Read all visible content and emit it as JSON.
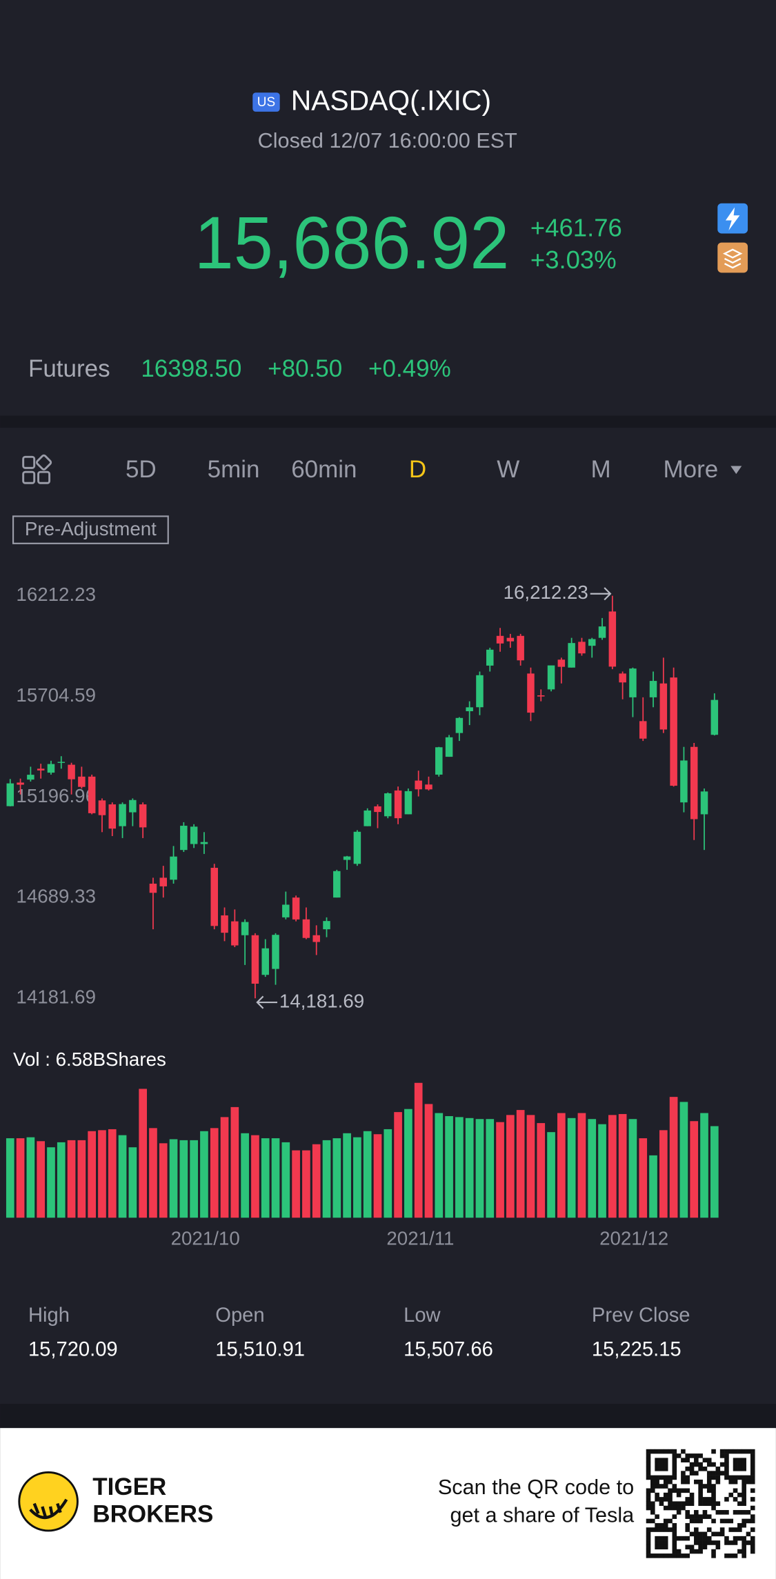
{
  "header": {
    "badge": "US",
    "title": "NASDAQ(.IXIC)",
    "status": "Closed 12/07 16:00:00 EST",
    "price": "15,686.92",
    "change": "+461.76",
    "change_pct": "+3.03%"
  },
  "futures": {
    "label": "Futures",
    "price": "16398.50",
    "change": "+80.50",
    "change_pct": "+0.49%"
  },
  "tabs": [
    {
      "label": "5D",
      "active": false
    },
    {
      "label": "5min",
      "active": false
    },
    {
      "label": "60min",
      "active": false
    },
    {
      "label": "D",
      "active": true
    },
    {
      "label": "W",
      "active": false
    },
    {
      "label": "M",
      "active": false
    },
    {
      "label": "More",
      "active": false
    }
  ],
  "chart_data": {
    "type": "candlestick",
    "adjustment": "Pre-Adjustment",
    "up_color": "#2cc47a",
    "down_color": "#f2394f",
    "ylim": [
      14181.69,
      16212.23
    ],
    "yticks": [
      16212.23,
      15704.59,
      15196.96,
      14689.33,
      14181.69
    ],
    "categories": [
      null,
      null,
      null,
      null,
      null,
      null,
      null,
      null,
      null,
      null,
      null,
      null,
      null,
      null,
      null,
      null,
      null,
      null,
      null,
      null,
      null,
      null,
      null,
      "2021/10",
      null,
      null,
      null,
      null,
      null,
      null,
      null,
      null,
      null,
      null,
      null,
      null,
      null,
      null,
      null,
      null,
      null,
      null,
      null,
      null,
      "2021/11",
      null,
      null,
      null,
      null,
      null,
      null,
      null,
      null,
      null,
      null,
      null,
      null,
      null,
      null,
      null,
      null,
      null,
      null,
      null,
      null,
      "2021/12",
      null,
      null,
      null,
      null
    ],
    "open": [
      15151,
      15270,
      15285,
      15340,
      15320,
      15370,
      15360,
      15300,
      15300,
      15180,
      15160,
      15050,
      15120,
      15160,
      14760,
      14790,
      14780,
      14930,
      14960,
      14960,
      14840,
      14600,
      14570,
      14500,
      14500,
      14300,
      14330,
      14590,
      14690,
      14580,
      14500,
      14530,
      14690,
      14880,
      14860,
      15050,
      15150,
      15100,
      15230,
      15110,
      15280,
      15260,
      15310,
      15400,
      15520,
      15630,
      15650,
      15860,
      16010,
      16000,
      16010,
      15820,
      15710,
      15740,
      15890,
      15850,
      15980,
      15960,
      16000,
      16133,
      15820,
      15700,
      15580,
      15700,
      15770,
      15800,
      15170,
      15450,
      15110,
      15510.91
    ],
    "high": [
      15288,
      15290,
      15350,
      15365,
      15380,
      15403,
      15370,
      15350,
      15310,
      15190,
      15170,
      15170,
      15190,
      15170,
      14790,
      14850,
      14950,
      15070,
      15060,
      15020,
      14860,
      14640,
      14630,
      14580,
      14510,
      14480,
      14510,
      14720,
      14700,
      14640,
      14550,
      14590,
      14830,
      14900,
      15030,
      15140,
      15160,
      15220,
      15250,
      15240,
      15330,
      15300,
      15450,
      15510,
      15600,
      15680,
      15830,
      15950,
      16050,
      16020,
      16020,
      15850,
      15740,
      15860,
      15900,
      16000,
      16000,
      16000,
      16100,
      16212.23,
      15830,
      15850,
      15700,
      15830,
      15900,
      15850,
      15450,
      15470,
      15240,
      15720.09
    ],
    "low": [
      15150,
      15210,
      15275,
      15290,
      15310,
      15340,
      15210,
      15240,
      15110,
      15020,
      15000,
      14990,
      15050,
      14990,
      14530,
      14690,
      14760,
      14920,
      14940,
      14910,
      14530,
      14470,
      14440,
      14350,
      14181.69,
      14290,
      14250,
      14580,
      14570,
      14480,
      14400,
      14490,
      14690,
      14830,
      14850,
      15050,
      15040,
      15090,
      15060,
      15110,
      15200,
      15230,
      15300,
      15400,
      15480,
      15560,
      15610,
      15830,
      15930,
      15950,
      15860,
      15580,
      15680,
      15730,
      15770,
      15850,
      15910,
      15900,
      15990,
      15842,
      15690,
      15600,
      15480,
      15650,
      15520,
      15250,
      15120,
      14980,
      14930,
      15507.66
    ],
    "close": [
      15265.89,
      15259.24,
      15309.38,
      15331.18,
      15363.52,
      15374.33,
      15286.64,
      15248.25,
      15115.49,
      15105.58,
      15037.76,
      15161.53,
      15181.92,
      15043.97,
      14713.9,
      14746.4,
      14896.85,
      15052.24,
      15047.7,
      14969.97,
      14546.68,
      14512.44,
      14448.58,
      14566.7,
      14255.49,
      14433.83,
      14501.91,
      14654.02,
      14579.54,
      14486.2,
      14465.92,
      14571.64,
      14823.43,
      14897.34,
      15021.81,
      15129.09,
      15121.68,
      15215.7,
      15090.2,
      15226.71,
      15235.84,
      15235.71,
      15448.12,
      15498.39,
      15595.92,
      15649.6,
      15811.58,
      15940.31,
      15971.59,
      15982.36,
      15886.54,
      15622.71,
      15704.28,
      15860.96,
      15853.85,
      15973.86,
      15921.57,
      15993.71,
      16057.44,
      15854.76,
      15775.14,
      15845.23,
      15491.66,
      15782.83,
      15537.69,
      15254.05,
      15381.32,
      15085.47,
      15225.15,
      15686.92
    ],
    "annotations": [
      {
        "value": 16212.23,
        "label": "16,212.23"
      },
      {
        "value": 14181.69,
        "label": "14,181.69"
      }
    ],
    "volume_title": "Vol  : 6.58BShares",
    "volume": [
      5.71,
      5.71,
      5.78,
      5.5,
      5.06,
      5.42,
      5.57,
      5.57,
      6.22,
      6.29,
      6.36,
      5.93,
      5.06,
      9.26,
      6.44,
      5.35,
      5.64,
      5.57,
      5.57,
      6.22,
      6.44,
      7.23,
      7.95,
      6.07,
      5.93,
      5.71,
      5.71,
      5.42,
      4.84,
      4.84,
      5.28,
      5.57,
      5.71,
      6.07,
      5.78,
      6.22,
      6,
      6.36,
      7.59,
      7.81,
      9.69,
      8.17,
      7.52,
      7.3,
      7.23,
      7.16,
      7.09,
      7.09,
      6.87,
      7.38,
      7.74,
      7.38,
      6.8,
      6.15,
      7.52,
      7.16,
      7.52,
      7.09,
      6.72,
      7.38,
      7.45,
      7.09,
      5.71,
      4.48,
      6.29,
      8.68,
      8.32,
      6.94,
      7.52,
      6.58
    ]
  },
  "stats": [
    {
      "label": "High",
      "value": "15,720.09"
    },
    {
      "label": "Open",
      "value": "15,510.91"
    },
    {
      "label": "Low",
      "value": "15,507.66"
    },
    {
      "label": "Prev Close",
      "value": "15,225.15"
    }
  ],
  "footer": {
    "brand_1": "TIGER",
    "brand_2": "BROKERS",
    "promo_1": "Scan the QR code to",
    "promo_2": "get a share of Tesla"
  }
}
